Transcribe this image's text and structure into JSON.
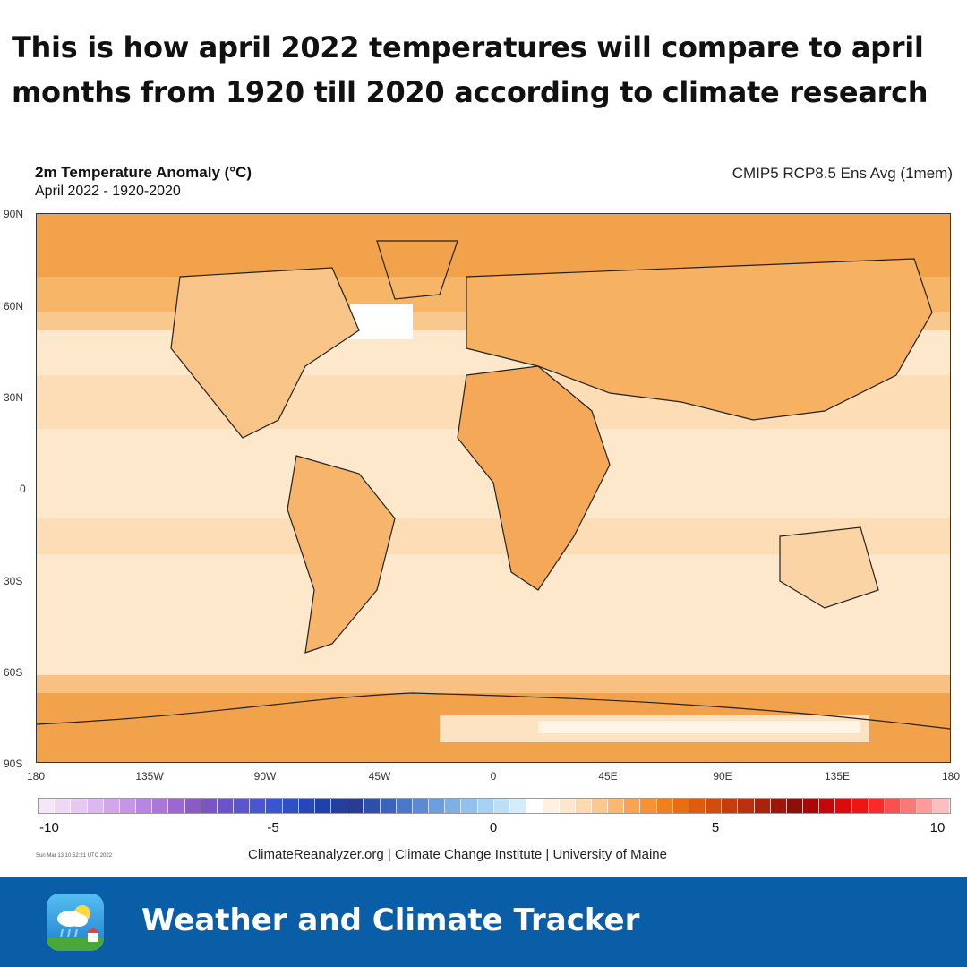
{
  "headline": "This is how april 2022 temperatures will compare to april months from 1920 till 2020 according to climate research",
  "map": {
    "title": "2m Temperature Anomaly (°C)",
    "subtitle": "April 2022 - 1920-2020",
    "model": "CMIP5 RCP8.5 Ens Avg (1mem)",
    "lat_labels": [
      "90N",
      "60N",
      "30N",
      "0",
      "30S",
      "60S",
      "90S"
    ],
    "lon_labels": [
      "180",
      "135W",
      "90W",
      "45W",
      "0",
      "45E",
      "90E",
      "135E",
      "180"
    ],
    "anomaly_colors": {
      "pale": "#fde8cc",
      "light": "#fbd4a6",
      "medium": "#f7b46a",
      "strong": "#ee9a3e",
      "white": "#ffffff"
    }
  },
  "colorbar": {
    "ticks": [
      "-10",
      "-5",
      "0",
      "5",
      "10"
    ],
    "colors": [
      "#f6e6f9",
      "#eed8f6",
      "#e6c9f3",
      "#dcb8ef",
      "#d1a7ea",
      "#c596e4",
      "#b886de",
      "#aa77d7",
      "#9b68cf",
      "#8c5ac6",
      "#7a55c4",
      "#6a55c8",
      "#5a55cc",
      "#4a55d0",
      "#3b55d2",
      "#2e4fc6",
      "#2747b8",
      "#2141aa",
      "#253e9c",
      "#2a3c8f",
      "#2f4fa8",
      "#3a63bb",
      "#4a77c8",
      "#5b8ad3",
      "#6c9ddc",
      "#7eb0e4",
      "#93c1eb",
      "#a8d0f1",
      "#bedef6",
      "#d4ebfa",
      "#ffffff",
      "#fdf2e2",
      "#fde7cc",
      "#fcd9af",
      "#fbc98f",
      "#f9b770",
      "#f7a552",
      "#f59236",
      "#f07f22",
      "#e86d14",
      "#de5c10",
      "#d24c0e",
      "#c53d0d",
      "#b8300c",
      "#a9230b",
      "#9b170a",
      "#8c0d09",
      "#a80808",
      "#c40707",
      "#dc0a0a",
      "#ee1414",
      "#fa2a2a",
      "#fb5050",
      "#fb7878",
      "#fc9c9c",
      "#fdbfbf"
    ]
  },
  "timestamp": "Sun Mar 13 10:52:21 UTC 2022",
  "credit": "ClimateReanalyzer.org | Climate Change Institute | University of Maine",
  "footer": {
    "title": "Weather and Climate Tracker",
    "bg_color": "#0a5da7"
  }
}
